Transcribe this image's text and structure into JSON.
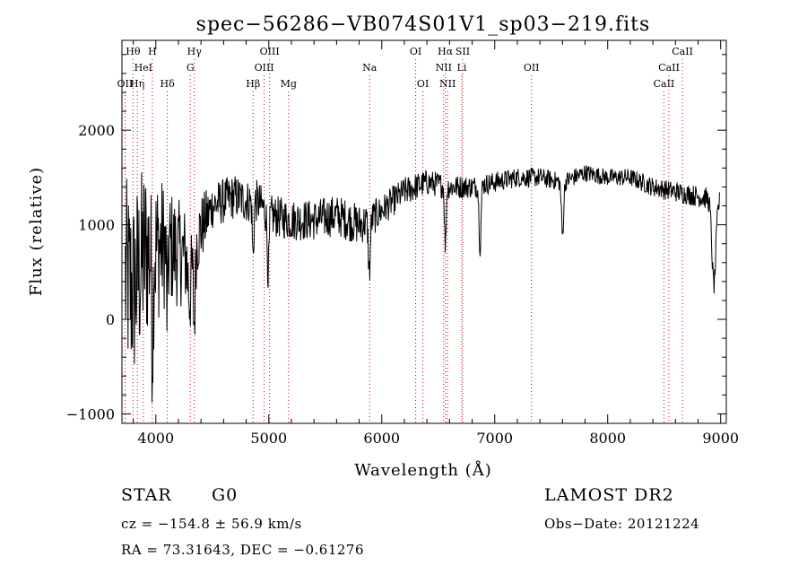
{
  "chart_data": {
    "type": "line",
    "title": "spec−56286−VB074S01V1_sp03−219.fits",
    "xlabel": "Wavelength (Å)",
    "ylabel": "Flux (relative)",
    "xlim": [
      3700,
      9050
    ],
    "ylim": [
      -1100,
      2950
    ],
    "xticks": [
      4000,
      5000,
      6000,
      7000,
      8000,
      9000
    ],
    "xtick_labels": [
      "4000",
      "5000",
      "6000",
      "7000",
      "8000",
      "9000"
    ],
    "yticks": [
      -1000,
      0,
      1000,
      2000
    ],
    "ytick_labels": [
      "−1000",
      "0",
      "1000",
      "2000"
    ],
    "grid": false,
    "line_color": "#000000",
    "marker_color": "#cc0000",
    "spectral_lines": [
      {
        "label": "OII",
        "wavelength": 3727,
        "row": 3
      },
      {
        "label": "Hθ",
        "wavelength": 3798,
        "row": 1
      },
      {
        "label": "Hη",
        "wavelength": 3836,
        "row": 3
      },
      {
        "label": "HeI",
        "wavelength": 3889,
        "row": 2
      },
      {
        "label": "H",
        "wavelength": 3969,
        "row": 1
      },
      {
        "label": "Hδ",
        "wavelength": 4102,
        "row": 3
      },
      {
        "label": "Hγ",
        "wavelength": 4341,
        "row": 1
      },
      {
        "label": "G",
        "wavelength": 4305,
        "row": 2
      },
      {
        "label": "Hβ",
        "wavelength": 4861,
        "row": 3
      },
      {
        "label": "OIII",
        "wavelength": 4959,
        "row": 2
      },
      {
        "label": "OIII",
        "wavelength": 5007,
        "row": 1
      },
      {
        "label": "Mg",
        "wavelength": 5175,
        "row": 3
      },
      {
        "label": "Na",
        "wavelength": 5893,
        "row": 2
      },
      {
        "label": "OI",
        "wavelength": 6300,
        "row": 1
      },
      {
        "label": "OI",
        "wavelength": 6364,
        "row": 3
      },
      {
        "label": "NII",
        "wavelength": 6548,
        "row": 2
      },
      {
        "label": "Hα",
        "wavelength": 6563,
        "row": 1
      },
      {
        "label": "NII",
        "wavelength": 6583,
        "row": 3
      },
      {
        "label": "Li",
        "wavelength": 6708,
        "row": 2
      },
      {
        "label": "SII",
        "wavelength": 6716,
        "row": 1
      },
      {
        "label": "OII",
        "wavelength": 7325,
        "row": 2
      },
      {
        "label": "CaII",
        "wavelength": 8498,
        "row": 3
      },
      {
        "label": "CaII",
        "wavelength": 8542,
        "row": 2
      },
      {
        "label": "CaII",
        "wavelength": 8662,
        "row": 1
      }
    ],
    "continuum": [
      [
        3700,
        500
      ],
      [
        3800,
        300
      ],
      [
        3900,
        700
      ],
      [
        4000,
        750
      ],
      [
        4100,
        800
      ],
      [
        4200,
        700
      ],
      [
        4300,
        650
      ],
      [
        4400,
        950
      ],
      [
        4500,
        1200
      ],
      [
        4600,
        1250
      ],
      [
        4700,
        1300
      ],
      [
        4800,
        1250
      ],
      [
        4900,
        1250
      ],
      [
        5000,
        1100
      ],
      [
        5200,
        1050
      ],
      [
        5400,
        1050
      ],
      [
        5600,
        1100
      ],
      [
        5800,
        1000
      ],
      [
        5900,
        1050
      ],
      [
        6000,
        1150
      ],
      [
        6200,
        1350
      ],
      [
        6400,
        1450
      ],
      [
        6600,
        1400
      ],
      [
        6800,
        1400
      ],
      [
        7000,
        1450
      ],
      [
        7200,
        1500
      ],
      [
        7400,
        1500
      ],
      [
        7600,
        1450
      ],
      [
        7800,
        1550
      ],
      [
        8000,
        1500
      ],
      [
        8200,
        1500
      ],
      [
        8400,
        1400
      ],
      [
        8600,
        1350
      ],
      [
        8800,
        1300
      ],
      [
        9000,
        1250
      ]
    ],
    "noise": [
      [
        3700,
        1100
      ],
      [
        3900,
        1000
      ],
      [
        4100,
        650
      ],
      [
        4300,
        500
      ],
      [
        4500,
        250
      ],
      [
        4800,
        230
      ],
      [
        5200,
        220
      ],
      [
        5800,
        220
      ],
      [
        6000,
        170
      ],
      [
        6400,
        140
      ],
      [
        7000,
        110
      ],
      [
        8000,
        90
      ],
      [
        9000,
        120
      ]
    ],
    "absorption_features": [
      {
        "wavelength": 3970,
        "depth": 900,
        "width": 10
      },
      {
        "wavelength": 4101,
        "depth": 700,
        "width": 10
      },
      {
        "wavelength": 4300,
        "depth": 400,
        "width": 20
      },
      {
        "wavelength": 4340,
        "depth": 800,
        "width": 12
      },
      {
        "wavelength": 4861,
        "depth": 600,
        "width": 10
      },
      {
        "wavelength": 4995,
        "depth": 600,
        "width": 12
      },
      {
        "wavelength": 5890,
        "depth": 550,
        "width": 12
      },
      {
        "wavelength": 6563,
        "depth": 650,
        "width": 10
      },
      {
        "wavelength": 6870,
        "depth": 650,
        "width": 12
      },
      {
        "wavelength": 7600,
        "depth": 550,
        "width": 14
      },
      {
        "wavelength": 8940,
        "depth": 900,
        "width": 25
      }
    ]
  },
  "info": {
    "object_class": "STAR",
    "subclass": "G0",
    "survey": "LAMOST DR2",
    "redshift_line": "cz = −154.8 ± 56.9 km/s",
    "obs_date_line": "Obs−Date: 20121224",
    "coords_line": "RA =  73.31643, DEC =  −0.61276"
  }
}
